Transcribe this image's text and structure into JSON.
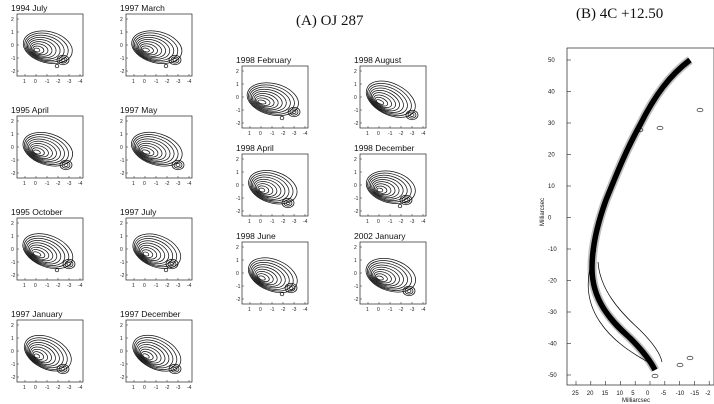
{
  "figure": {
    "panel_a_title": "(A) OJ 287",
    "panel_b_title": "(B) 4C +12.50"
  },
  "panel_a": {
    "axis_ticks_x": [
      "1",
      "0",
      "-1",
      "-2",
      "-3",
      "-4"
    ],
    "axis_ticks_y": [
      "2",
      "1",
      "0",
      "-1",
      "-2"
    ],
    "maps": [
      {
        "label": "1994 July"
      },
      {
        "label": "1995 April"
      },
      {
        "label": "1995 October"
      },
      {
        "label": "1997 January"
      },
      {
        "label": "1997 March"
      },
      {
        "label": "1997 May"
      },
      {
        "label": "1997 July"
      },
      {
        "label": "1997 December"
      },
      {
        "label": "1998 February"
      },
      {
        "label": "1998 April"
      },
      {
        "label": "1998 June"
      },
      {
        "label": "1998 August"
      },
      {
        "label": "1998 December"
      },
      {
        "label": "2002 January"
      }
    ]
  },
  "panel_b": {
    "y_label": "Milliarcsec",
    "x_label": "Milliarcsec",
    "y_ticks": [
      "50",
      "40",
      "30",
      "20",
      "10",
      "0",
      "-10",
      "-20",
      "-30",
      "-40",
      "-50"
    ],
    "x_ticks": [
      "25",
      "20",
      "15",
      "10",
      "5",
      "0",
      "-5",
      "-10",
      "-15",
      "-2"
    ]
  }
}
